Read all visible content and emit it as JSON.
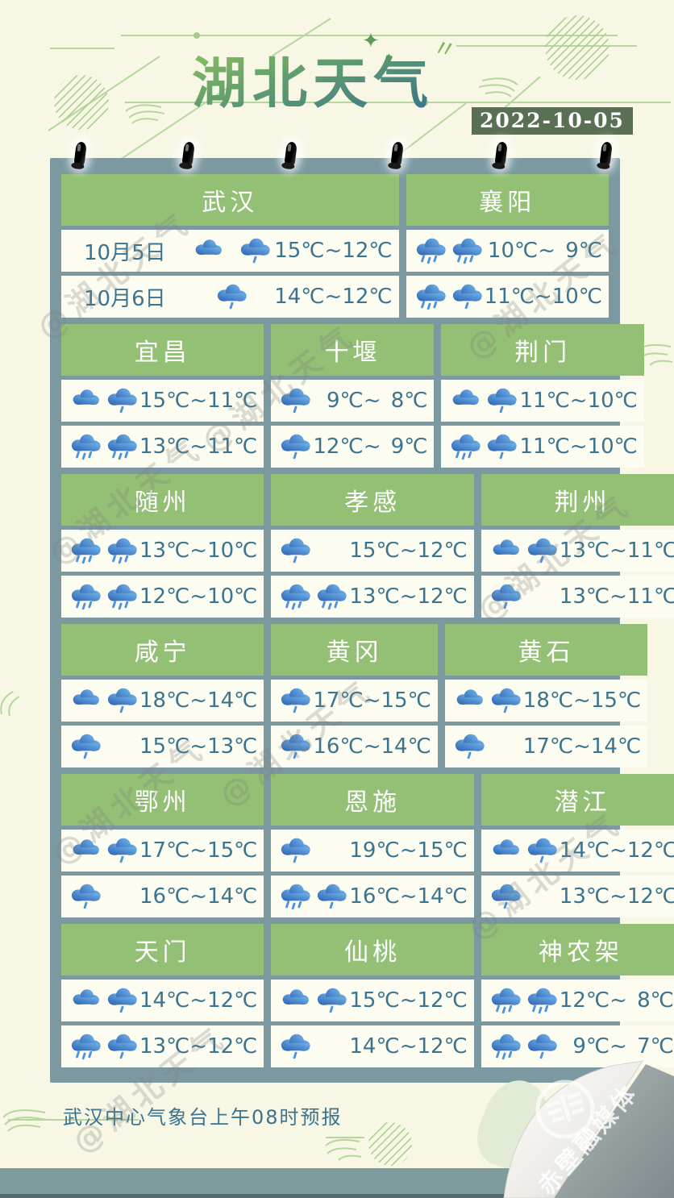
{
  "header": {
    "title": "湖北天气",
    "date": "2022-10-05"
  },
  "watermark": {
    "text": "@湖北天气"
  },
  "footer": {
    "note": "武汉中心气象台上午08时预报"
  },
  "curl": {
    "text": "赤壁融媒体"
  },
  "icon_legend": {
    "cloud": "overcast-cloud",
    "rain": "light-rain-cloud",
    "rain3": "rain-cloud"
  },
  "sections": [
    {
      "kind": "double",
      "headers": [
        {
          "label": "武汉",
          "span": 2
        },
        {
          "label": "襄阳",
          "span": 1
        }
      ],
      "rows": [
        {
          "cells": [
            {
              "span": 2,
              "date": "10月5日",
              "icons": [
                "cloud",
                "rain"
              ],
              "hi": "15℃",
              "lo": "12℃"
            },
            {
              "span": 1,
              "icons": [
                "rain3",
                "rain3"
              ],
              "hi": "10℃",
              "lo": "9℃"
            }
          ]
        },
        {
          "cells": [
            {
              "span": 2,
              "date": "10月6日",
              "icons": [
                "rain"
              ],
              "hi": "14℃",
              "lo": "12℃"
            },
            {
              "span": 1,
              "icons": [
                "rain3",
                "rain"
              ],
              "hi": "11℃",
              "lo": "10℃"
            }
          ]
        }
      ]
    },
    {
      "kind": "triple",
      "headers": [
        {
          "label": "宜昌"
        },
        {
          "label": "十堰"
        },
        {
          "label": "荆门"
        }
      ],
      "rows": [
        {
          "cells": [
            {
              "icons": [
                "cloud",
                "rain"
              ],
              "hi": "15℃",
              "lo": "11℃"
            },
            {
              "icons": [
                "rain"
              ],
              "hi": "9℃",
              "lo": "8℃"
            },
            {
              "icons": [
                "cloud",
                "rain"
              ],
              "hi": "11℃",
              "lo": "10℃"
            }
          ]
        },
        {
          "cells": [
            {
              "icons": [
                "rain3",
                "rain3"
              ],
              "hi": "13℃",
              "lo": "11℃"
            },
            {
              "icons": [
                "rain"
              ],
              "hi": "12℃",
              "lo": "9℃"
            },
            {
              "icons": [
                "rain3",
                "rain"
              ],
              "hi": "11℃",
              "lo": "10℃"
            }
          ]
        }
      ]
    },
    {
      "kind": "triple",
      "headers": [
        {
          "label": "随州"
        },
        {
          "label": "孝感"
        },
        {
          "label": "荆州"
        }
      ],
      "rows": [
        {
          "cells": [
            {
              "icons": [
                "rain3",
                "rain3"
              ],
              "hi": "13℃",
              "lo": "10℃"
            },
            {
              "icons": [
                "rain"
              ],
              "hi": "15℃",
              "lo": "12℃"
            },
            {
              "icons": [
                "cloud",
                "rain"
              ],
              "hi": "13℃",
              "lo": "11℃"
            }
          ]
        },
        {
          "cells": [
            {
              "icons": [
                "rain3",
                "rain3"
              ],
              "hi": "12℃",
              "lo": "10℃"
            },
            {
              "icons": [
                "rain3",
                "rain3"
              ],
              "hi": "13℃",
              "lo": "12℃"
            },
            {
              "icons": [
                "rain"
              ],
              "hi": "13℃",
              "lo": "11℃"
            }
          ]
        }
      ]
    },
    {
      "kind": "triple",
      "headers": [
        {
          "label": "咸宁"
        },
        {
          "label": "黄冈"
        },
        {
          "label": "黄石"
        }
      ],
      "rows": [
        {
          "cells": [
            {
              "icons": [
                "cloud",
                "rain"
              ],
              "hi": "18℃",
              "lo": "14℃"
            },
            {
              "icons": [
                "rain"
              ],
              "hi": "17℃",
              "lo": "15℃"
            },
            {
              "icons": [
                "cloud",
                "rain"
              ],
              "hi": "18℃",
              "lo": "15℃"
            }
          ]
        },
        {
          "cells": [
            {
              "icons": [
                "rain"
              ],
              "hi": "15℃",
              "lo": "13℃"
            },
            {
              "icons": [
                "rain"
              ],
              "hi": "16℃",
              "lo": "14℃"
            },
            {
              "icons": [
                "rain"
              ],
              "hi": "17℃",
              "lo": "14℃"
            }
          ]
        }
      ]
    },
    {
      "kind": "triple",
      "headers": [
        {
          "label": "鄂州"
        },
        {
          "label": "恩施"
        },
        {
          "label": "潜江"
        }
      ],
      "rows": [
        {
          "cells": [
            {
              "icons": [
                "cloud",
                "rain"
              ],
              "hi": "17℃",
              "lo": "15℃"
            },
            {
              "icons": [
                "rain"
              ],
              "hi": "19℃",
              "lo": "15℃"
            },
            {
              "icons": [
                "cloud",
                "rain"
              ],
              "hi": "14℃",
              "lo": "12℃"
            }
          ]
        },
        {
          "cells": [
            {
              "icons": [
                "rain"
              ],
              "hi": "16℃",
              "lo": "14℃"
            },
            {
              "icons": [
                "rain3",
                "rain"
              ],
              "hi": "16℃",
              "lo": "14℃"
            },
            {
              "icons": [
                "rain"
              ],
              "hi": "13℃",
              "lo": "12℃"
            }
          ]
        }
      ]
    },
    {
      "kind": "triple",
      "headers": [
        {
          "label": "天门"
        },
        {
          "label": "仙桃"
        },
        {
          "label": "神农架"
        }
      ],
      "rows": [
        {
          "cells": [
            {
              "icons": [
                "cloud",
                "rain"
              ],
              "hi": "14℃",
              "lo": "12℃"
            },
            {
              "icons": [
                "cloud",
                "rain"
              ],
              "hi": "15℃",
              "lo": "12℃"
            },
            {
              "icons": [
                "rain3",
                "rain3"
              ],
              "hi": "12℃",
              "lo": "8℃"
            }
          ]
        },
        {
          "cells": [
            {
              "icons": [
                "rain3",
                "rain"
              ],
              "hi": "13℃",
              "lo": "12℃"
            },
            {
              "icons": [
                "rain"
              ],
              "hi": "14℃",
              "lo": "12℃"
            },
            {
              "icons": [
                "rain3",
                "rain"
              ],
              "hi": "9℃",
              "lo": "7℃"
            }
          ]
        }
      ]
    }
  ],
  "colors": {
    "background": "#f8f7e6",
    "paper_slate": "#7c99a2",
    "header_green": "#93c075",
    "cell_cream": "#fdfcf0",
    "text_teal": "#3a7490",
    "badge_green": "#5a7054",
    "cloud_blue_dark": "#2d63b2",
    "cloud_blue_light": "#71b3ea",
    "deco_green": "#b5d69c"
  }
}
